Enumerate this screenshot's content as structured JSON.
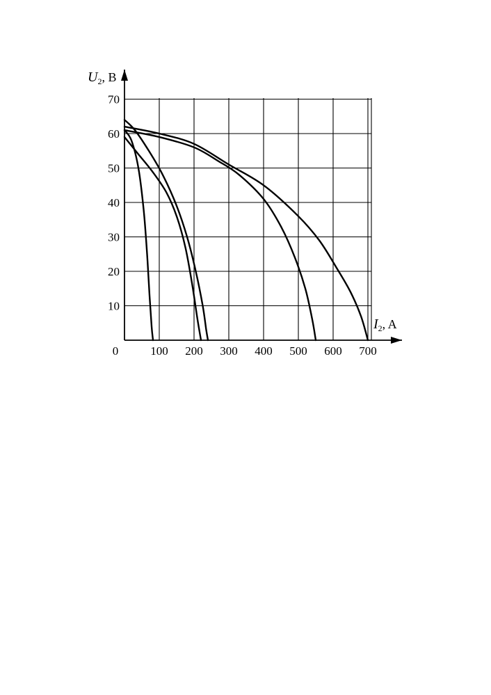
{
  "chart_data": {
    "type": "line",
    "xlabel": {
      "symbol": "I",
      "subscript": "2",
      "unit": ", A"
    },
    "ylabel": {
      "symbol": "U",
      "subscript": "2",
      "unit": ", B"
    },
    "xlim": [
      0,
      710
    ],
    "ylim": [
      0,
      70
    ],
    "x_ticks": [
      0,
      100,
      200,
      300,
      400,
      500,
      600,
      700
    ],
    "y_ticks": [
      10,
      20,
      30,
      40,
      50,
      60,
      70
    ],
    "x_tick_labels": [
      "0",
      "100",
      "200",
      "300",
      "400",
      "500",
      "600",
      "700"
    ],
    "y_tick_labels": [
      "10",
      "20",
      "30",
      "40",
      "50",
      "60",
      "70"
    ],
    "grid": true,
    "series": [
      {
        "x": [
          0,
          20,
          40,
          55,
          65,
          72,
          78,
          82
        ],
        "y": [
          61,
          58,
          50,
          38,
          25,
          13,
          4,
          0
        ]
      },
      {
        "x": [
          0,
          40,
          80,
          120,
          150,
          175,
          195,
          210,
          220
        ],
        "y": [
          59,
          54,
          49,
          43,
          36,
          27,
          16,
          6,
          0
        ]
      },
      {
        "x": [
          0,
          30,
          70,
          110,
          150,
          180,
          205,
          225,
          235,
          240
        ],
        "y": [
          64,
          61,
          55,
          48,
          39,
          30,
          20,
          10,
          3,
          0
        ]
      },
      {
        "x": [
          0,
          100,
          200,
          270,
          330,
          400,
          450,
          490,
          520,
          540,
          550
        ],
        "y": [
          61,
          59,
          56,
          52,
          48,
          41,
          33,
          24,
          15,
          6,
          0
        ]
      },
      {
        "x": [
          0,
          100,
          200,
          300,
          400,
          500,
          560,
          610,
          650,
          680,
          700
        ],
        "y": [
          62,
          60,
          57,
          51,
          45,
          36,
          29,
          21,
          14,
          7,
          0
        ]
      }
    ]
  }
}
